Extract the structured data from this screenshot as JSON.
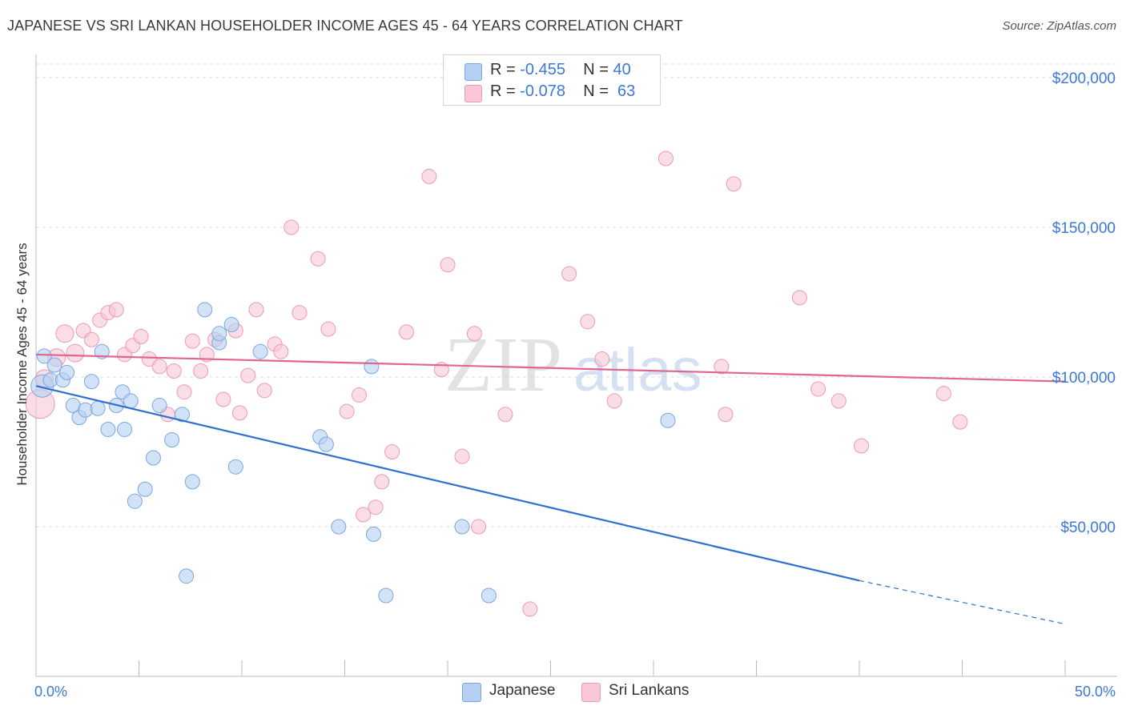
{
  "header": {
    "title": "JAPANESE VS SRI LANKAN HOUSEHOLDER INCOME AGES 45 - 64 YEARS CORRELATION CHART",
    "source": "Source: ZipAtlas.com"
  },
  "legend": {
    "japanese": {
      "r_label": "R =",
      "r_value": "-0.455",
      "n_label": "N =",
      "n_value": "40"
    },
    "srilankan": {
      "r_label": "R =",
      "r_value": "-0.078",
      "n_label": "N =",
      "n_value": "63"
    }
  },
  "bottom_legend": {
    "japanese": "Japanese",
    "srilankan": "Sri Lankans"
  },
  "watermark": {
    "zip": "ZIP",
    "atlas": "atlas"
  },
  "colors": {
    "japanese_fill": "#b5d0f2",
    "japanese_stroke": "#7aa6e0",
    "japanese_line": "#2f6fd0",
    "srilankan_fill": "#f8c6d6",
    "srilankan_stroke": "#ec9ab5",
    "srilankan_line": "#e06690",
    "tick_label": "#3b78d8",
    "grid": "#dddddd"
  },
  "chart_data": {
    "type": "scatter",
    "title": "JAPANESE VS SRI LANKAN HOUSEHOLDER INCOME AGES 45 - 64 YEARS CORRELATION CHART",
    "xlabel": "",
    "ylabel": "Householder Income Ages 45 - 64 years",
    "xlim": [
      0,
      50
    ],
    "ylim": [
      0,
      200000
    ],
    "x_tick_labels": [
      "0.0%",
      "50.0%"
    ],
    "y_ticks": [
      50000,
      100000,
      150000,
      200000
    ],
    "y_tick_labels": [
      "$50,000",
      "$100,000",
      "$150,000",
      "$200,000"
    ],
    "grid": true,
    "legend_placement": "top-center",
    "series": [
      {
        "name": "Japanese",
        "r": -0.455,
        "n": 40,
        "trend": {
          "x0": 0,
          "y0": 97000,
          "x1": 40,
          "y1": 32000,
          "dashed_to_x": 50,
          "dashed_to_y": 17500
        },
        "points": [
          {
            "x": 0.3,
            "y": 97000,
            "s": 14
          },
          {
            "x": 0.4,
            "y": 107000,
            "s": 9
          },
          {
            "x": 0.7,
            "y": 99000,
            "s": 9
          },
          {
            "x": 0.9,
            "y": 104000,
            "s": 9
          },
          {
            "x": 1.3,
            "y": 99000,
            "s": 9
          },
          {
            "x": 1.5,
            "y": 101500,
            "s": 9
          },
          {
            "x": 1.8,
            "y": 90500,
            "s": 9
          },
          {
            "x": 2.1,
            "y": 86500,
            "s": 9
          },
          {
            "x": 2.4,
            "y": 89000,
            "s": 9
          },
          {
            "x": 2.7,
            "y": 98500,
            "s": 9
          },
          {
            "x": 3.0,
            "y": 89500,
            "s": 9
          },
          {
            "x": 3.2,
            "y": 108500,
            "s": 9
          },
          {
            "x": 3.5,
            "y": 82500,
            "s": 9
          },
          {
            "x": 3.9,
            "y": 90500,
            "s": 9
          },
          {
            "x": 4.2,
            "y": 95000,
            "s": 9
          },
          {
            "x": 4.3,
            "y": 82500,
            "s": 9
          },
          {
            "x": 4.6,
            "y": 92000,
            "s": 9
          },
          {
            "x": 4.8,
            "y": 58500,
            "s": 9
          },
          {
            "x": 5.3,
            "y": 62500,
            "s": 9
          },
          {
            "x": 5.7,
            "y": 73000,
            "s": 9
          },
          {
            "x": 6.0,
            "y": 90500,
            "s": 9
          },
          {
            "x": 6.6,
            "y": 79000,
            "s": 9
          },
          {
            "x": 7.1,
            "y": 87500,
            "s": 9
          },
          {
            "x": 7.3,
            "y": 33500,
            "s": 9
          },
          {
            "x": 7.6,
            "y": 65000,
            "s": 9
          },
          {
            "x": 8.2,
            "y": 122500,
            "s": 9
          },
          {
            "x": 8.9,
            "y": 111500,
            "s": 9
          },
          {
            "x": 8.9,
            "y": 114500,
            "s": 9
          },
          {
            "x": 9.5,
            "y": 117500,
            "s": 9
          },
          {
            "x": 9.7,
            "y": 70000,
            "s": 9
          },
          {
            "x": 10.9,
            "y": 108500,
            "s": 9
          },
          {
            "x": 13.8,
            "y": 80000,
            "s": 9
          },
          {
            "x": 14.1,
            "y": 77500,
            "s": 9
          },
          {
            "x": 14.7,
            "y": 50000,
            "s": 9
          },
          {
            "x": 16.3,
            "y": 103500,
            "s": 9
          },
          {
            "x": 16.4,
            "y": 47500,
            "s": 9
          },
          {
            "x": 17.0,
            "y": 27000,
            "s": 9
          },
          {
            "x": 20.7,
            "y": 50000,
            "s": 9
          },
          {
            "x": 22.0,
            "y": 27000,
            "s": 9
          },
          {
            "x": 30.7,
            "y": 85500,
            "s": 9
          }
        ]
      },
      {
        "name": "Sri Lankans",
        "r": -0.078,
        "n": 63,
        "trend": {
          "x0": 0,
          "y0": 107500,
          "x1": 50,
          "y1": 98500
        },
        "points": [
          {
            "x": 0.2,
            "y": 91000,
            "s": 18
          },
          {
            "x": 0.4,
            "y": 99500,
            "s": 11
          },
          {
            "x": 1.0,
            "y": 106500,
            "s": 11
          },
          {
            "x": 1.4,
            "y": 114500,
            "s": 11
          },
          {
            "x": 1.9,
            "y": 108000,
            "s": 11
          },
          {
            "x": 2.3,
            "y": 115500,
            "s": 9
          },
          {
            "x": 2.7,
            "y": 112500,
            "s": 9
          },
          {
            "x": 3.1,
            "y": 119000,
            "s": 9
          },
          {
            "x": 3.5,
            "y": 121500,
            "s": 9
          },
          {
            "x": 3.9,
            "y": 122500,
            "s": 9
          },
          {
            "x": 4.3,
            "y": 107500,
            "s": 9
          },
          {
            "x": 4.7,
            "y": 110500,
            "s": 9
          },
          {
            "x": 5.1,
            "y": 113500,
            "s": 9
          },
          {
            "x": 5.5,
            "y": 106000,
            "s": 9
          },
          {
            "x": 6.0,
            "y": 103500,
            "s": 9
          },
          {
            "x": 6.4,
            "y": 87500,
            "s": 9
          },
          {
            "x": 6.7,
            "y": 102000,
            "s": 9
          },
          {
            "x": 7.2,
            "y": 95000,
            "s": 9
          },
          {
            "x": 7.6,
            "y": 112000,
            "s": 9
          },
          {
            "x": 8.0,
            "y": 102000,
            "s": 9
          },
          {
            "x": 8.3,
            "y": 107500,
            "s": 9
          },
          {
            "x": 8.7,
            "y": 112500,
            "s": 9
          },
          {
            "x": 9.1,
            "y": 92500,
            "s": 9
          },
          {
            "x": 9.7,
            "y": 115500,
            "s": 9
          },
          {
            "x": 9.9,
            "y": 88000,
            "s": 9
          },
          {
            "x": 10.3,
            "y": 100500,
            "s": 9
          },
          {
            "x": 10.7,
            "y": 122500,
            "s": 9
          },
          {
            "x": 11.1,
            "y": 95500,
            "s": 9
          },
          {
            "x": 11.6,
            "y": 111000,
            "s": 9
          },
          {
            "x": 11.9,
            "y": 108500,
            "s": 9
          },
          {
            "x": 12.4,
            "y": 150000,
            "s": 9
          },
          {
            "x": 12.8,
            "y": 121500,
            "s": 9
          },
          {
            "x": 13.7,
            "y": 139500,
            "s": 9
          },
          {
            "x": 14.2,
            "y": 116000,
            "s": 9
          },
          {
            "x": 15.1,
            "y": 88500,
            "s": 9
          },
          {
            "x": 15.7,
            "y": 94000,
            "s": 9
          },
          {
            "x": 15.9,
            "y": 54000,
            "s": 9
          },
          {
            "x": 16.5,
            "y": 56500,
            "s": 9
          },
          {
            "x": 16.8,
            "y": 65000,
            "s": 9
          },
          {
            "x": 17.3,
            "y": 75000,
            "s": 9
          },
          {
            "x": 18.0,
            "y": 115000,
            "s": 9
          },
          {
            "x": 19.1,
            "y": 167000,
            "s": 9
          },
          {
            "x": 19.7,
            "y": 102500,
            "s": 9
          },
          {
            "x": 20.0,
            "y": 137500,
            "s": 9
          },
          {
            "x": 20.7,
            "y": 73500,
            "s": 9
          },
          {
            "x": 21.3,
            "y": 114500,
            "s": 9
          },
          {
            "x": 21.5,
            "y": 50000,
            "s": 9
          },
          {
            "x": 22.8,
            "y": 87500,
            "s": 9
          },
          {
            "x": 24.0,
            "y": 22500,
            "s": 9
          },
          {
            "x": 25.9,
            "y": 134500,
            "s": 9
          },
          {
            "x": 26.8,
            "y": 118500,
            "s": 9
          },
          {
            "x": 27.5,
            "y": 106000,
            "s": 9
          },
          {
            "x": 28.1,
            "y": 92000,
            "s": 9
          },
          {
            "x": 30.6,
            "y": 173000,
            "s": 9
          },
          {
            "x": 33.3,
            "y": 103500,
            "s": 9
          },
          {
            "x": 33.5,
            "y": 87500,
            "s": 9
          },
          {
            "x": 33.9,
            "y": 164500,
            "s": 9
          },
          {
            "x": 37.1,
            "y": 126500,
            "s": 9
          },
          {
            "x": 38.0,
            "y": 96000,
            "s": 9
          },
          {
            "x": 39.0,
            "y": 92000,
            "s": 9
          },
          {
            "x": 40.1,
            "y": 77000,
            "s": 9
          },
          {
            "x": 44.1,
            "y": 94500,
            "s": 9
          },
          {
            "x": 44.9,
            "y": 85000,
            "s": 9
          }
        ]
      }
    ]
  }
}
